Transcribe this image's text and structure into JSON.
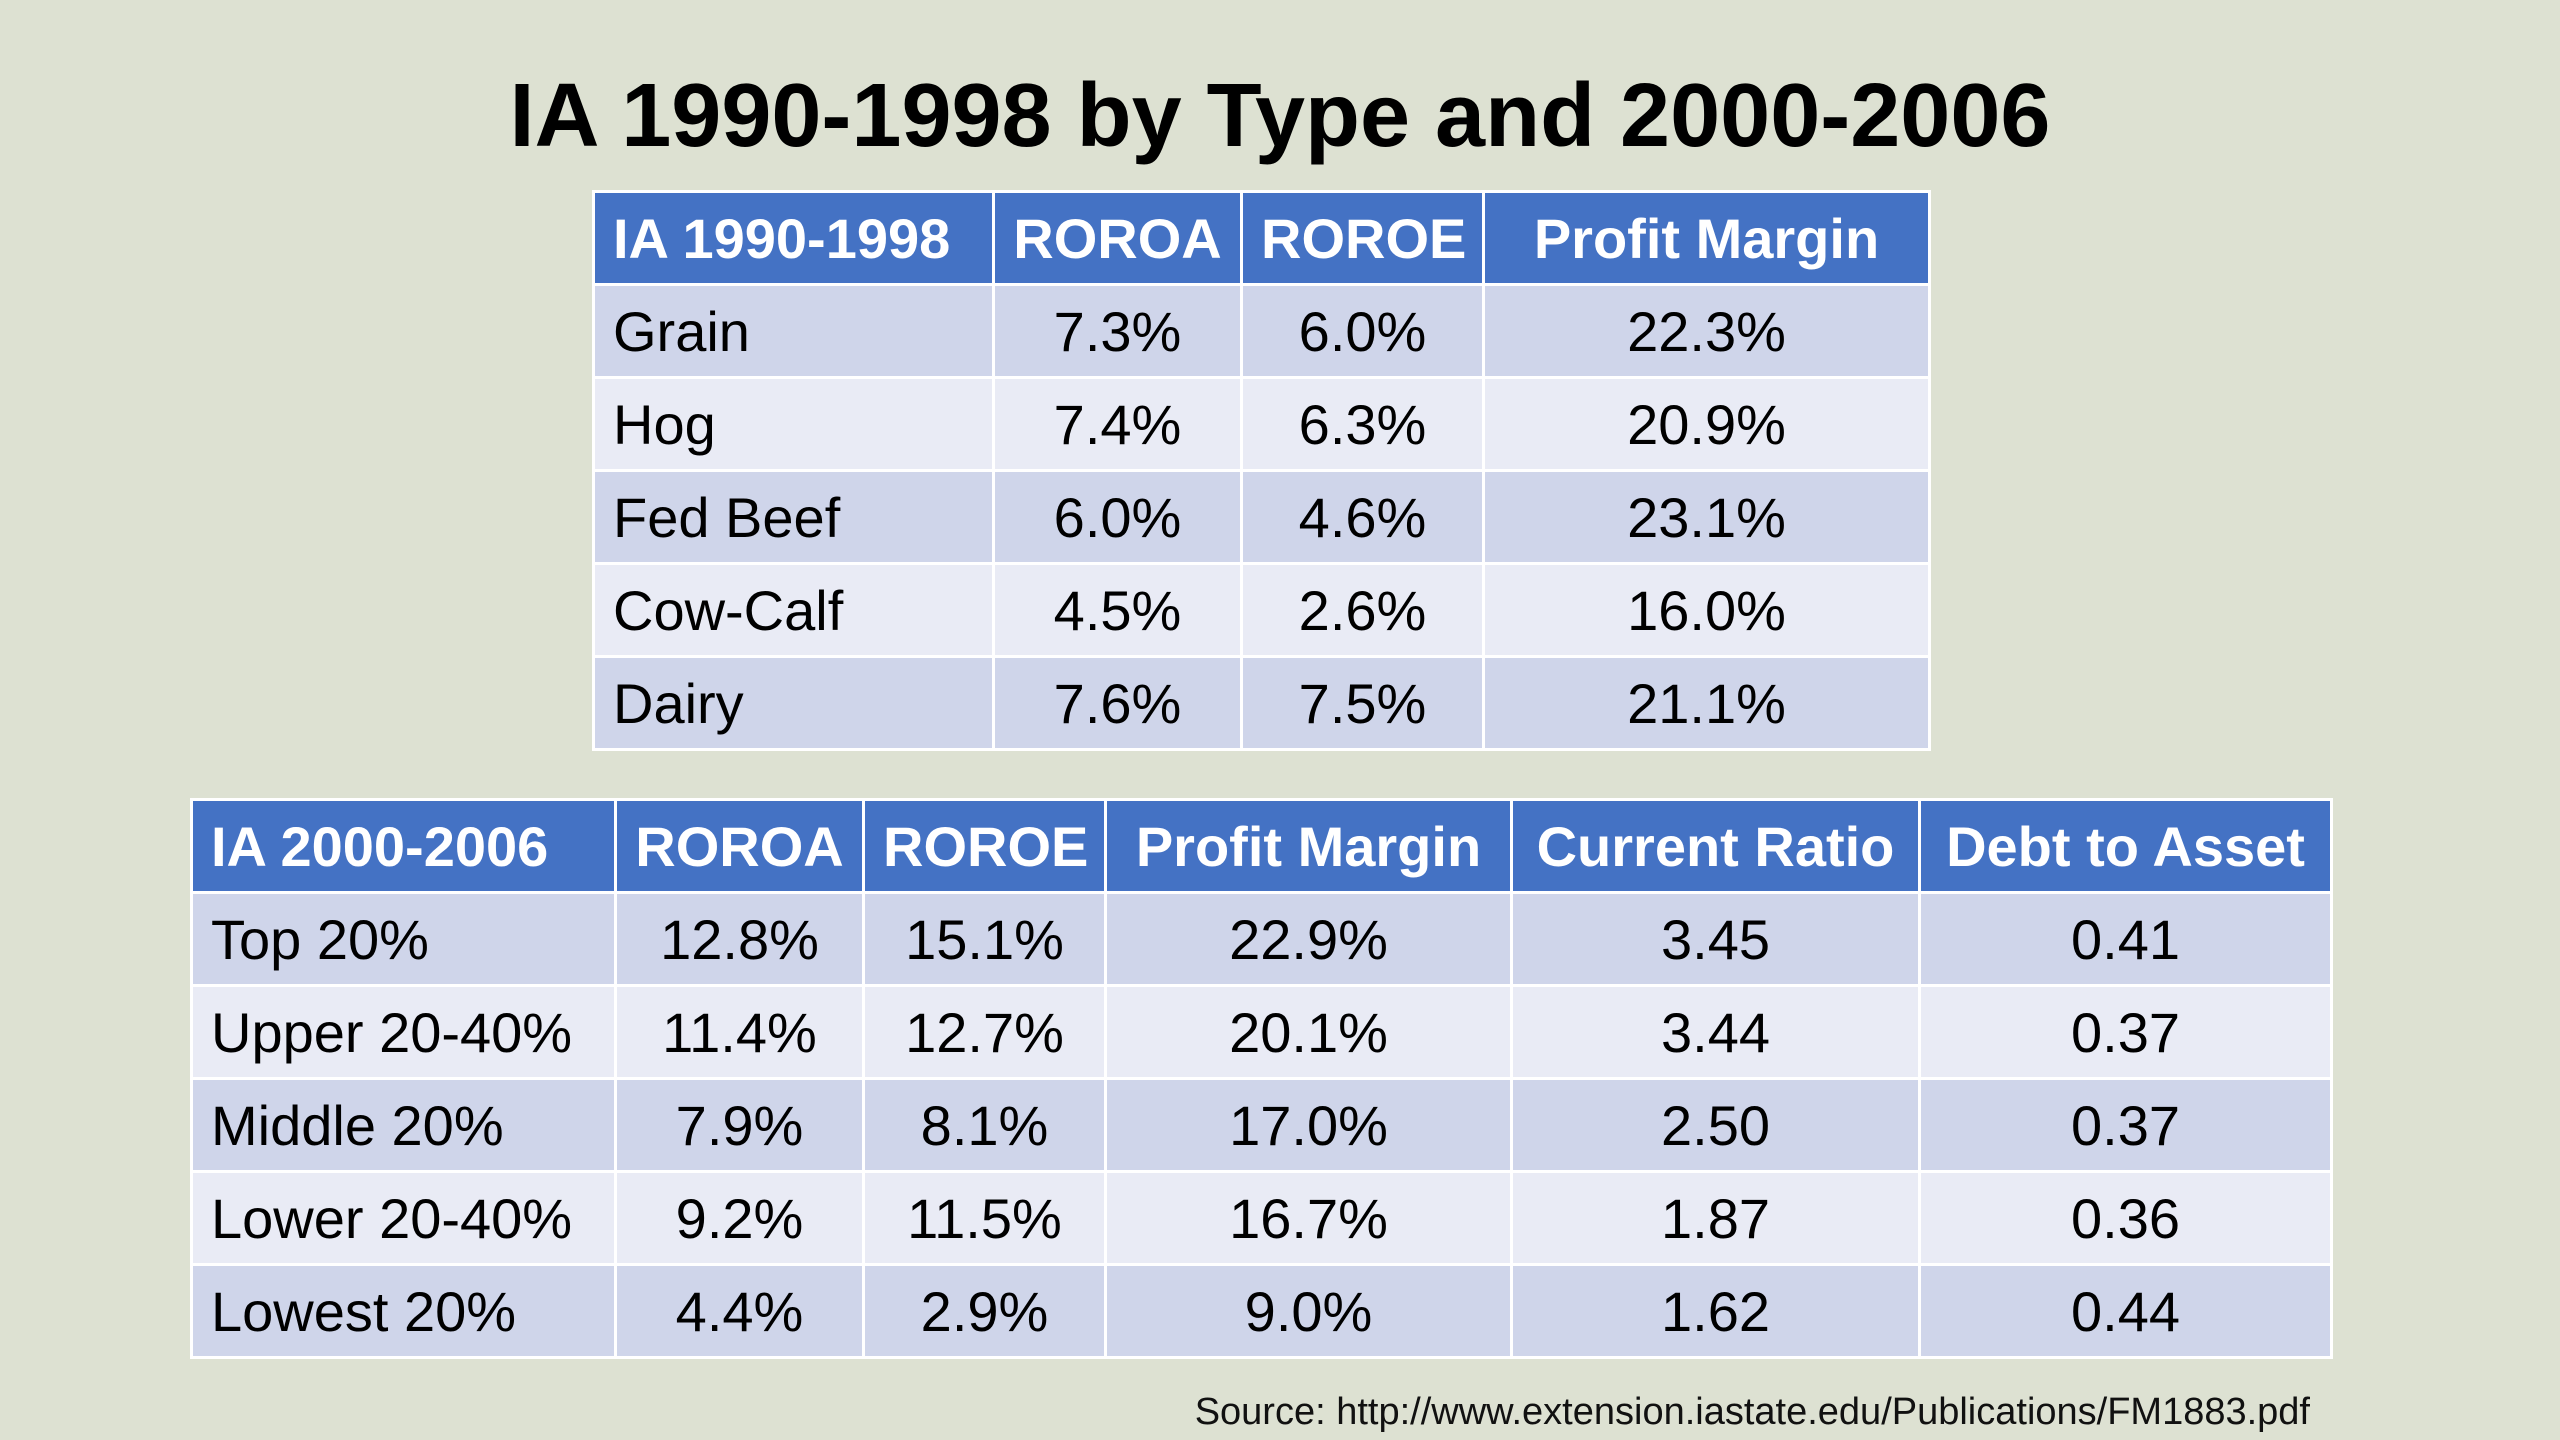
{
  "title": "IA 1990-1998 by Type and 2000-2006",
  "table_1990": {
    "headers": [
      "IA 1990-1998",
      "ROROA",
      "ROROE",
      "Profit Margin"
    ],
    "rows": [
      [
        "Grain",
        "7.3%",
        "6.0%",
        "22.3%"
      ],
      [
        "Hog",
        "7.4%",
        "6.3%",
        "20.9%"
      ],
      [
        "Fed Beef",
        "6.0%",
        "4.6%",
        "23.1%"
      ],
      [
        "Cow-Calf",
        "4.5%",
        "2.6%",
        "16.0%"
      ],
      [
        "Dairy",
        "7.6%",
        "7.5%",
        "21.1%"
      ]
    ]
  },
  "table_2000": {
    "headers": [
      "IA 2000-2006",
      "ROROA",
      "ROROE",
      "Profit Margin",
      "Current Ratio",
      "Debt to Asset"
    ],
    "rows": [
      [
        "Top 20%",
        "12.8%",
        "15.1%",
        "22.9%",
        "3.45",
        "0.41"
      ],
      [
        "Upper 20-40%",
        "11.4%",
        "12.7%",
        "20.1%",
        "3.44",
        "0.37"
      ],
      [
        "Middle 20%",
        "7.9%",
        "8.1%",
        "17.0%",
        "2.50",
        "0.37"
      ],
      [
        "Lower 20-40%",
        "9.2%",
        "11.5%",
        "16.7%",
        "1.87",
        "0.36"
      ],
      [
        "Lowest 20%",
        "4.4%",
        "2.9%",
        "9.0%",
        "1.62",
        "0.44"
      ]
    ]
  },
  "source": "Source: http://www.extension.iastate.edu/Publications/FM1883.pdf",
  "colors": {
    "background": "#dde1d2",
    "header": "#4472c4",
    "row_dark": "#cfd5ea",
    "row_light": "#e9ebf5"
  }
}
